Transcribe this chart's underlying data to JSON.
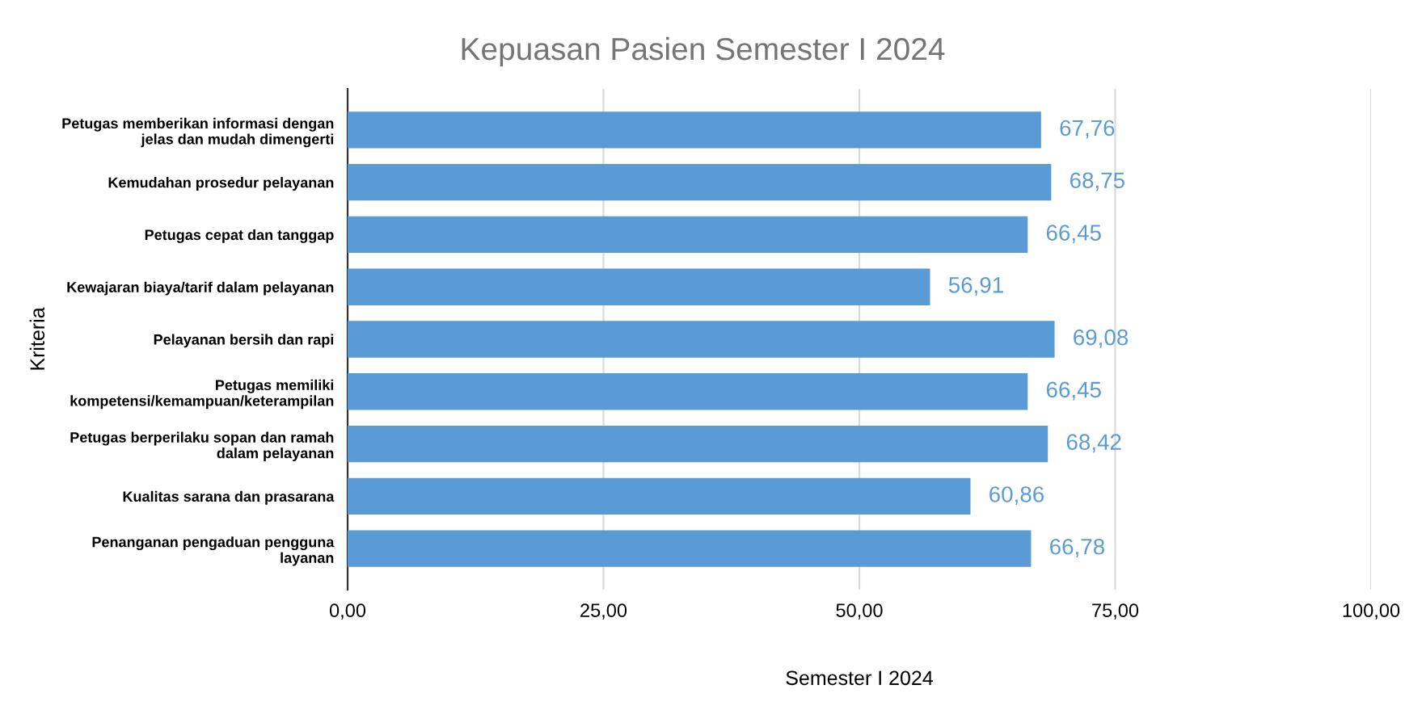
{
  "chart_data": {
    "type": "bar",
    "orientation": "horizontal",
    "title": "Kepuasan Pasien Semester I 2024",
    "xlabel": "Semester I 2024",
    "ylabel": "Kriteria",
    "categories": [
      "Petugas memberikan informasi dengan\njelas dan mudah dimengerti",
      "Kemudahan prosedur pelayanan",
      "Petugas cepat dan tanggap",
      "Kewajaran biaya/tarif dalam pelayanan",
      "Pelayanan bersih dan rapi",
      "Petugas memiliki\nkompetensi/kemampuan/keterampilan",
      "Petugas berperilaku sopan dan ramah\ndalam pelayanan",
      "Kualitas sarana dan prasarana",
      "Penanganan pengaduan pengguna\nlayanan"
    ],
    "values": [
      67.76,
      68.75,
      66.45,
      56.91,
      69.08,
      66.45,
      68.42,
      60.86,
      66.78
    ],
    "value_labels": [
      "67,76",
      "68,75",
      "66,45",
      "56,91",
      "69,08",
      "66,45",
      "68,42",
      "60,86",
      "66,78"
    ],
    "color": "#5b9bd5",
    "xlim": [
      0,
      100
    ],
    "xticks": [
      {
        "value": 0,
        "label": "0,00"
      },
      {
        "value": 25,
        "label": "25,00"
      },
      {
        "value": 50,
        "label": "50,00"
      },
      {
        "value": 75,
        "label": "75,00"
      },
      {
        "value": 100,
        "label": "100,00"
      }
    ],
    "grid": "x",
    "legend": false
  }
}
